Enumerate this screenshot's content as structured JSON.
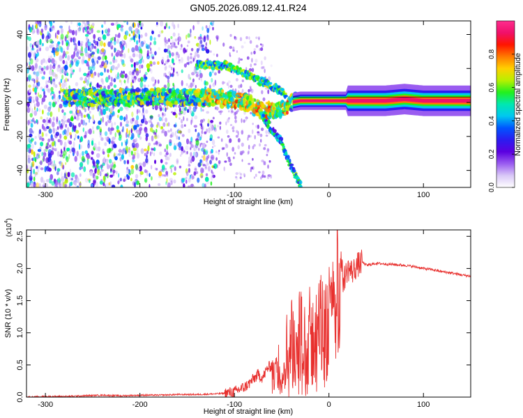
{
  "title": "GN05.2026.089.12.41.R24",
  "chart_data": [
    {
      "type": "heatmap",
      "title": "GN05.2026.089.12.41.R24",
      "xlabel": "Height of straight line (km)",
      "ylabel": "Frequency (Hz)",
      "xlim": [
        -320,
        150
      ],
      "ylim": [
        -50,
        48
      ],
      "x_ticks": [
        -300,
        -200,
        -100,
        0,
        100
      ],
      "x_tick_labels": [
        "-300",
        "-200",
        "-100",
        "0",
        "100"
      ],
      "y_ticks": [
        -40,
        -20,
        0,
        20,
        40
      ],
      "y_tick_labels": [
        "-40",
        "-20",
        "0",
        "20",
        "40"
      ],
      "colorbar": {
        "label": "Normalized spectral amplitude",
        "range": [
          0,
          1
        ],
        "ticks": [
          0.0,
          0.2,
          0.4,
          0.6,
          0.8
        ],
        "tick_labels": [
          "0.0",
          "0.2",
          "0.4",
          "0.6",
          "0.8"
        ],
        "colormap": [
          "#ffffff",
          "#d9c8f7",
          "#9a5cf0",
          "#5b00e0",
          "#2b1cf0",
          "#0055ff",
          "#00c8f0",
          "#00e8b0",
          "#22f01e",
          "#b8f000",
          "#ffd000",
          "#ff7a00",
          "#ff1500",
          "#f0106a",
          "#ff2d8e"
        ]
      },
      "features": [
        {
          "name": "main-carrier",
          "x_range": [
            -280,
            150
          ],
          "freq_points": [
            [
              -280,
              3
            ],
            [
              -200,
              3
            ],
            [
              -120,
              3
            ],
            [
              -90,
              1
            ],
            [
              -70,
              -5
            ],
            [
              -50,
              -4
            ],
            [
              -40,
              0
            ],
            [
              -30,
              1
            ],
            [
              0,
              1
            ],
            [
              60,
              1
            ],
            [
              80,
              2
            ],
            [
              100,
              1
            ],
            [
              150,
              1
            ]
          ]
        },
        {
          "name": "upper-trace",
          "freq_points": [
            [
              -140,
              22
            ],
            [
              -110,
              22
            ],
            [
              -90,
              17
            ],
            [
              -70,
              12
            ],
            [
              -55,
              8
            ],
            [
              -45,
              4
            ]
          ]
        },
        {
          "name": "lower-trace",
          "freq_points": [
            [
              -70,
              -8
            ],
            [
              -60,
              -16
            ],
            [
              -50,
              -24
            ],
            [
              -40,
              -38
            ],
            [
              -30,
              -48
            ]
          ]
        }
      ]
    },
    {
      "type": "line",
      "xlabel": "Height of straight line (km)",
      "ylabel": "SNR (10 * v/v)",
      "y_multiplier": "(x10",
      "y_multiplier_exp": "4",
      "xlim": [
        -320,
        150
      ],
      "ylim": [
        0,
        2.6
      ],
      "x_ticks": [
        -300,
        -200,
        -100,
        0,
        100
      ],
      "x_tick_labels": [
        "-300",
        "-200",
        "-100",
        "0",
        "100"
      ],
      "y_ticks": [
        0.0,
        0.5,
        1.0,
        1.5,
        2.0,
        2.5
      ],
      "y_tick_labels": [
        "0.0",
        "0.5",
        "1.0",
        "1.5",
        "2.0",
        "2.5"
      ],
      "series": [
        {
          "name": "SNR",
          "color": "#e8302e",
          "x": [
            -320,
            -300,
            -280,
            -260,
            -240,
            -220,
            -200,
            -180,
            -160,
            -140,
            -120,
            -110,
            -100,
            -95,
            -90,
            -85,
            -80,
            -75,
            -70,
            -65,
            -60,
            -55,
            -50,
            -45,
            -40,
            -35,
            -30,
            -25,
            -20,
            -15,
            -10,
            -5,
            0,
            5,
            8,
            10,
            15,
            20,
            25,
            30,
            35,
            40,
            50,
            60,
            70,
            80,
            90,
            100,
            110,
            120,
            130,
            140,
            150
          ],
          "values": [
            0.0,
            0.01,
            0.01,
            0.02,
            0.03,
            0.02,
            0.03,
            0.03,
            0.04,
            0.04,
            0.05,
            0.06,
            0.08,
            0.12,
            0.15,
            0.2,
            0.28,
            0.35,
            0.3,
            0.45,
            0.5,
            0.6,
            0.75,
            0.9,
            1.1,
            0.6,
            1.3,
            0.8,
            1.4,
            1.2,
            1.5,
            1.45,
            1.6,
            1.7,
            2.2,
            2.6,
            1.8,
            2.0,
            1.95,
            2.05,
            2.1,
            2.05,
            2.08,
            2.07,
            2.06,
            2.05,
            2.03,
            2.0,
            1.98,
            1.95,
            1.93,
            1.9,
            1.88
          ]
        }
      ]
    }
  ]
}
